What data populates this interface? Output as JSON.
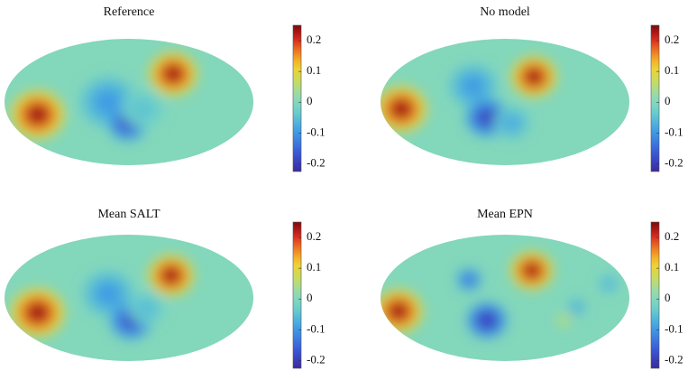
{
  "chart_data": [
    {
      "type": "heatmap",
      "title": "Reference",
      "clim": [
        -0.225,
        0.25
      ],
      "cticks": [
        0.2,
        0.1,
        0,
        -0.1,
        -0.2
      ],
      "background": 0,
      "blobs": [
        {
          "lon": -132,
          "lat": -18,
          "value": 0.24,
          "radius": 38
        },
        {
          "lon": 64,
          "lat": 40,
          "value": 0.24,
          "radius": 34
        },
        {
          "lon": -30,
          "lat": 0,
          "value": -0.1,
          "radius": 40
        },
        {
          "lon": -2,
          "lat": -30,
          "value": -0.19,
          "radius": 28
        },
        {
          "lon": 20,
          "lat": -10,
          "value": -0.05,
          "radius": 30
        }
      ]
    },
    {
      "type": "heatmap",
      "title": "No model",
      "clim": [
        -0.225,
        0.25
      ],
      "cticks": [
        0.2,
        0.1,
        0,
        -0.1,
        -0.2
      ],
      "background": 0,
      "blobs": [
        {
          "lon": -150,
          "lat": -10,
          "value": 0.24,
          "radius": 36
        },
        {
          "lon": 42,
          "lat": 36,
          "value": 0.24,
          "radius": 32
        },
        {
          "lon": -46,
          "lat": 23,
          "value": -0.1,
          "radius": 34
        },
        {
          "lon": -26,
          "lat": -22,
          "value": -0.2,
          "radius": 30
        },
        {
          "lon": 10,
          "lat": -30,
          "value": -0.08,
          "radius": 26
        }
      ]
    },
    {
      "type": "heatmap",
      "title": "Mean SALT",
      "clim": [
        -0.225,
        0.25
      ],
      "cticks": [
        0.2,
        0.1,
        0,
        -0.1,
        -0.2
      ],
      "background": 0,
      "blobs": [
        {
          "lon": -132,
          "lat": -21,
          "value": 0.24,
          "radius": 38
        },
        {
          "lon": 61,
          "lat": 32,
          "value": 0.24,
          "radius": 32
        },
        {
          "lon": -30,
          "lat": 6,
          "value": -0.1,
          "radius": 36
        },
        {
          "lon": 3,
          "lat": -32,
          "value": -0.19,
          "radius": 30
        },
        {
          "lon": 25,
          "lat": -15,
          "value": -0.06,
          "radius": 26
        }
      ]
    },
    {
      "type": "heatmap",
      "title": "Mean EPN",
      "clim": [
        -0.225,
        0.25
      ],
      "cticks": [
        0.2,
        0.1,
        0,
        -0.1,
        -0.2
      ],
      "background": 0,
      "blobs": [
        {
          "lon": -154,
          "lat": -19,
          "value": 0.24,
          "radius": 34
        },
        {
          "lon": 39,
          "lat": 39,
          "value": 0.24,
          "radius": 30
        },
        {
          "lon": -52,
          "lat": 26,
          "value": -0.15,
          "radius": 18
        },
        {
          "lon": -26,
          "lat": -32,
          "value": -0.21,
          "radius": 28
        },
        {
          "lon": 104,
          "lat": -13,
          "value": -0.1,
          "radius": 12
        },
        {
          "lon": 85,
          "lat": -32,
          "value": 0.1,
          "radius": 9
        },
        {
          "lon": 150,
          "lat": 20,
          "value": -0.08,
          "radius": 14
        }
      ]
    }
  ]
}
